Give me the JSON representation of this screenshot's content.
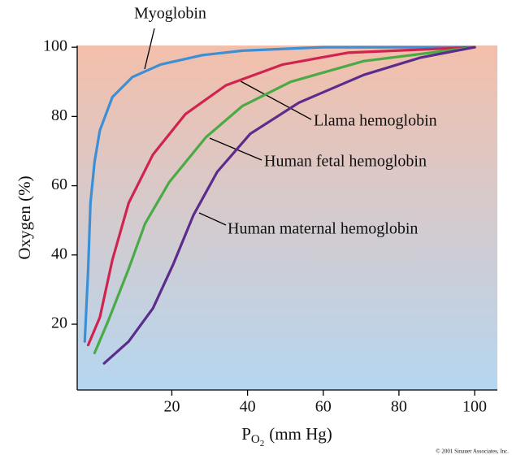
{
  "chart_data": {
    "type": "line",
    "ylabel": "Oxygen (%)",
    "xlabel_symbol": "P",
    "xlabel_subscript": "O",
    "xlabel_subsubscript": "2",
    "xlabel_unit": "(mm Hg)",
    "credit": "© 2001 Sinauer Associates, Inc.",
    "xlim": [
      -5,
      106
    ],
    "ylim": [
      1,
      100.5
    ],
    "xticks": [
      20,
      40,
      60,
      80,
      100
    ],
    "yticks": [
      20,
      40,
      60,
      80,
      100
    ],
    "series": [
      {
        "name": "Myoglobin",
        "color": "#3b8fd6",
        "x": [
          -3,
          -2.1,
          -1.5,
          -0.4,
          1,
          4.3,
          9.6,
          17,
          28,
          38.6,
          60,
          100
        ],
        "values": [
          15,
          36,
          55,
          67,
          76,
          85.6,
          91.4,
          95,
          97.7,
          99,
          100,
          100
        ]
      },
      {
        "name": "Llama hemoglobin",
        "color": "#cf2450",
        "x": [
          -2.1,
          1,
          4.3,
          8.6,
          15,
          23.6,
          34.3,
          49.3,
          66.5,
          100
        ],
        "values": [
          14,
          22,
          38.6,
          55,
          69,
          80.7,
          89,
          95,
          98.4,
          100
        ]
      },
      {
        "name": "Human fetal hemoglobin",
        "color": "#4aaa46",
        "x": [
          -0.4,
          3.2,
          8.6,
          12.9,
          19.3,
          29,
          38.6,
          51.4,
          70.7,
          100
        ],
        "values": [
          11.7,
          21,
          36,
          49,
          61,
          74,
          83,
          90,
          96,
          100
        ]
      },
      {
        "name": "Human maternal hemoglobin",
        "color": "#5b2c8c",
        "x": [
          2.1,
          8.6,
          15,
          20.4,
          25.7,
          32,
          40.7,
          53.6,
          70.7,
          85.7,
          100
        ],
        "values": [
          8.7,
          15,
          24.6,
          37.4,
          51.5,
          64,
          75,
          84,
          92,
          97,
          100
        ]
      }
    ]
  }
}
